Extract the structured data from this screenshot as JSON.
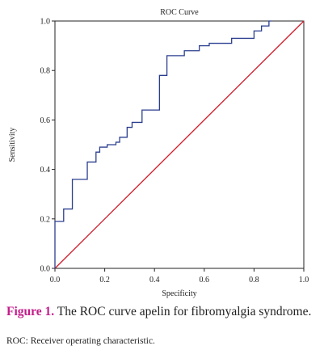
{
  "chart_data": {
    "type": "line",
    "title": "ROC Curve",
    "xlabel": "Specificity",
    "ylabel": "Sensitivity",
    "xlim": [
      0,
      1
    ],
    "ylim": [
      0,
      1
    ],
    "x_ticks": [
      "0.0",
      "0.2",
      "0.4",
      "0.6",
      "0.8",
      "1.0"
    ],
    "y_ticks": [
      "0.0",
      "0.2",
      "0.4",
      "0.6",
      "0.8",
      "1.0"
    ],
    "grid": false,
    "series": [
      {
        "color": "#2b3f8f",
        "x": [
          0.0,
          0.0,
          0.01,
          0.01,
          0.035,
          0.035,
          0.07,
          0.07,
          0.13,
          0.13,
          0.165,
          0.165,
          0.18,
          0.18,
          0.21,
          0.21,
          0.245,
          0.245,
          0.26,
          0.26,
          0.29,
          0.29,
          0.31,
          0.31,
          0.35,
          0.35,
          0.42,
          0.42,
          0.45,
          0.45,
          0.52,
          0.52,
          0.58,
          0.58,
          0.62,
          0.62,
          0.71,
          0.71,
          0.8,
          0.8,
          0.83,
          0.83,
          0.86,
          0.86,
          0.87
        ],
        "y": [
          0.0,
          0.19,
          0.19,
          0.19,
          0.19,
          0.24,
          0.24,
          0.36,
          0.36,
          0.43,
          0.43,
          0.47,
          0.47,
          0.49,
          0.49,
          0.5,
          0.5,
          0.51,
          0.51,
          0.53,
          0.53,
          0.57,
          0.57,
          0.59,
          0.59,
          0.64,
          0.64,
          0.78,
          0.78,
          0.86,
          0.86,
          0.88,
          0.88,
          0.9,
          0.9,
          0.91,
          0.91,
          0.93,
          0.93,
          0.96,
          0.96,
          0.98,
          0.98,
          1.0,
          1.0
        ]
      },
      {
        "color": "#d11b2a",
        "x": [
          0,
          1
        ],
        "y": [
          0,
          1
        ]
      }
    ]
  },
  "caption": {
    "label": "Figure 1.",
    "text": " The ROC curve apelin for fibromyalgia syndrome.",
    "note": "ROC: Receiver operating characteristic."
  }
}
